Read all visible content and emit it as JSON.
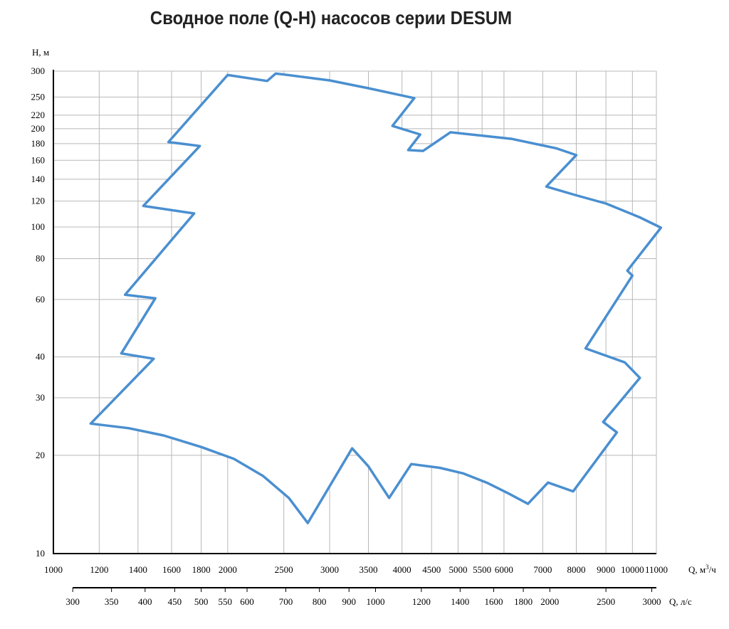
{
  "chart_data": {
    "type": "area",
    "title": "Сводное поле (Q-H) насосов серии DESUM",
    "ylabel": "H, м",
    "xlabel": "Q, м³/ч",
    "x2label": "Q, л/с",
    "ylog": true,
    "xlog": true,
    "ylim": [
      10,
      300
    ],
    "xlim": [
      1000,
      11000
    ],
    "grid": true,
    "y_ticks": [
      10,
      20,
      30,
      40,
      60,
      80,
      100,
      120,
      140,
      160,
      180,
      200,
      220,
      250,
      300
    ],
    "x_ticks": [
      1000,
      1200,
      1400,
      1600,
      1800,
      2000,
      2500,
      3000,
      3500,
      4000,
      4500,
      5000,
      5500,
      6000,
      7000,
      8000,
      9000,
      10000,
      11000
    ],
    "x_tick_labels": [
      "1000",
      "1200",
      "1400",
      "1600",
      "1800",
      "2000",
      "2500",
      "3000",
      "3500",
      "4000",
      "4500",
      "5000",
      "5500",
      "6000",
      "7000",
      "8000",
      "9000",
      "10000",
      "11000"
    ],
    "x2_ticks": [
      300,
      350,
      400,
      450,
      500,
      550,
      600,
      700,
      800,
      900,
      1000,
      1200,
      1400,
      1600,
      1800,
      2000,
      2500,
      3000
    ],
    "x2_tick_labels": [
      "300",
      "350",
      "400",
      "450",
      "500",
      "550",
      "600",
      "700",
      "800",
      "900",
      "1000",
      "1200",
      "1400",
      "1600",
      "1800",
      "2000",
      "2500",
      "3000"
    ],
    "boundary_color": "#4a8fd0",
    "boundary": [
      [
        1160,
        25
      ],
      [
        1350,
        24.2
      ],
      [
        1550,
        23
      ],
      [
        1800,
        21.2
      ],
      [
        2050,
        19.5
      ],
      [
        2300,
        17.3
      ],
      [
        2550,
        14.8
      ],
      [
        2750,
        12.4
      ],
      [
        3280,
        21
      ],
      [
        3500,
        18.5
      ],
      [
        3800,
        14.8
      ],
      [
        4150,
        18.8
      ],
      [
        4650,
        18.3
      ],
      [
        5100,
        17.6
      ],
      [
        5600,
        16.5
      ],
      [
        6100,
        15.3
      ],
      [
        6600,
        14.2
      ],
      [
        7150,
        16.5
      ],
      [
        7900,
        15.5
      ],
      [
        9400,
        23.5
      ],
      [
        8900,
        25.3
      ],
      [
        10300,
        34.5
      ],
      [
        9700,
        38.5
      ],
      [
        8300,
        42.5
      ],
      [
        10000,
        71
      ],
      [
        9800,
        73.5
      ],
      [
        11200,
        99.5
      ],
      [
        10300,
        107
      ],
      [
        9000,
        118
      ],
      [
        8000,
        125
      ],
      [
        7100,
        133
      ],
      [
        8000,
        166
      ],
      [
        7400,
        174
      ],
      [
        6200,
        186
      ],
      [
        4850,
        195
      ],
      [
        4350,
        171
      ],
      [
        4100,
        172
      ],
      [
        4300,
        192
      ],
      [
        3850,
        204
      ],
      [
        4200,
        248
      ],
      [
        3500,
        266
      ],
      [
        3000,
        281
      ],
      [
        2500,
        293
      ],
      [
        2420,
        295
      ],
      [
        2340,
        280
      ],
      [
        2000,
        292
      ],
      [
        1580,
        182
      ],
      [
        1790,
        177
      ],
      [
        1430,
        116
      ],
      [
        1750,
        110
      ],
      [
        1330,
        62
      ],
      [
        1500,
        60.5
      ],
      [
        1310,
        41
      ],
      [
        1490,
        39.5
      ],
      [
        1160,
        25
      ]
    ]
  }
}
